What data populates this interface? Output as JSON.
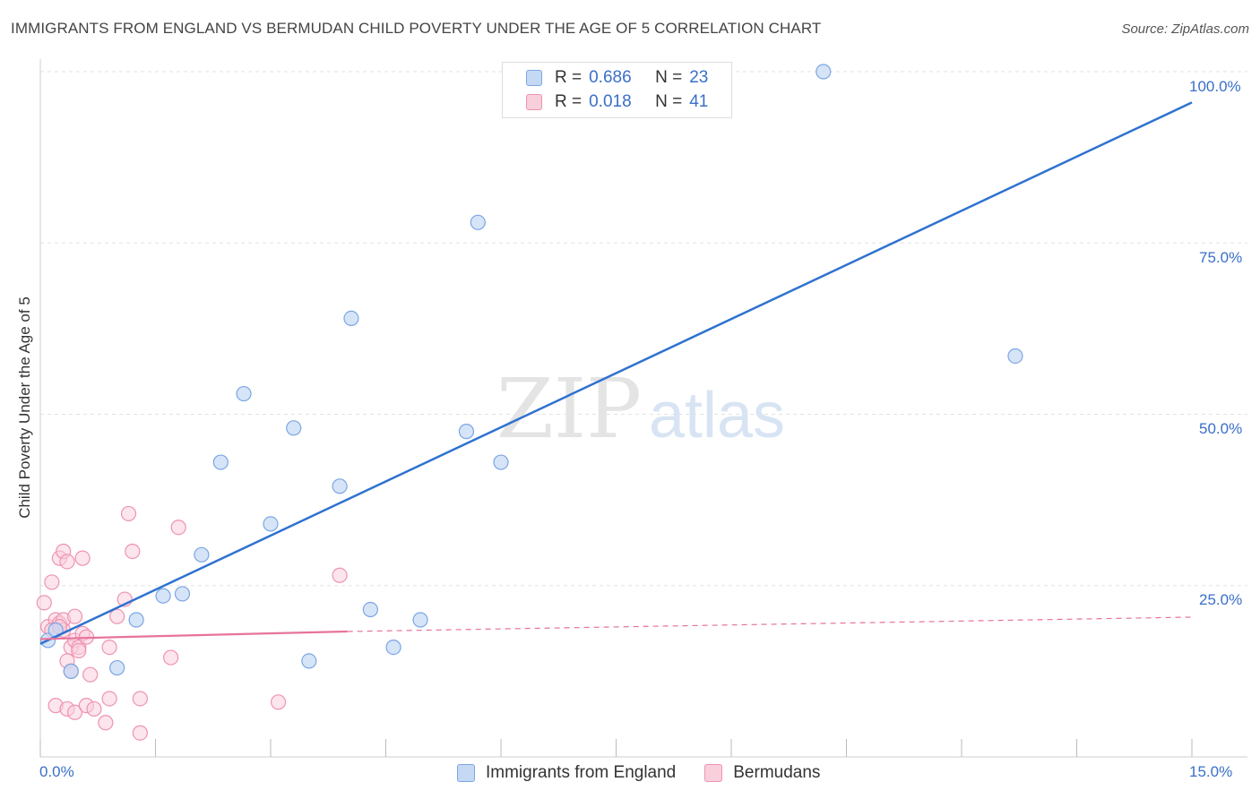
{
  "header": {
    "title": "IMMIGRANTS FROM ENGLAND VS BERMUDAN CHILD POVERTY UNDER THE AGE OF 5 CORRELATION CHART",
    "source": "Source: ZipAtlas.com"
  },
  "legend": {
    "rows": [
      {
        "r_label": "R =",
        "r_value": "0.686",
        "n_label": "N =",
        "n_value": "23"
      },
      {
        "r_label": "R =",
        "r_value": "0.018",
        "n_label": "N =",
        "n_value": "41"
      }
    ]
  },
  "bottom_legend": {
    "items": [
      "Immigrants from England",
      "Bermudans"
    ]
  },
  "axes": {
    "ylabel": "Child Poverty Under the Age of 5",
    "x_min_label": "0.0%",
    "x_max_label": "15.0%",
    "y_ticks": [
      "100.0%",
      "75.0%",
      "50.0%",
      "25.0%"
    ]
  },
  "watermark": {
    "zip": "ZIP",
    "atlas": "atlas"
  },
  "colors": {
    "blue": "#2f72d0",
    "blue_fill": "#c5d9f5",
    "blue_stroke": "#7aa6e3",
    "pink": "#e8739a",
    "pink_fill": "#f9cfdc",
    "pink_stroke": "#ee93b2",
    "tick_text": "#3a6fc9"
  },
  "chart_data": {
    "type": "scatter",
    "xlabel": "",
    "ylabel": "Child Poverty Under the Age of 5",
    "xlim": [
      0,
      15
    ],
    "ylim": [
      0,
      100
    ],
    "series": [
      {
        "name": "Immigrants from England",
        "points": [
          [
            0.1,
            17.0
          ],
          [
            0.4,
            12.5
          ],
          [
            1.0,
            13.0
          ],
          [
            1.25,
            20.0
          ],
          [
            1.6,
            23.5
          ],
          [
            1.85,
            23.8
          ],
          [
            2.1,
            29.5
          ],
          [
            2.35,
            43.0
          ],
          [
            2.65,
            53.0
          ],
          [
            3.0,
            34.0
          ],
          [
            3.3,
            48.0
          ],
          [
            3.5,
            14.0
          ],
          [
            3.9,
            39.5
          ],
          [
            4.05,
            64.0
          ],
          [
            4.3,
            21.5
          ],
          [
            4.6,
            16.0
          ],
          [
            4.95,
            20.0
          ],
          [
            5.55,
            47.5
          ],
          [
            5.7,
            78.0
          ],
          [
            6.0,
            43.0
          ],
          [
            10.2,
            100.0
          ],
          [
            12.7,
            58.5
          ],
          [
            0.2,
            18.5
          ]
        ],
        "trend": {
          "x": [
            0,
            15
          ],
          "y": [
            16.5,
            95.5
          ]
        }
      },
      {
        "name": "Bermudans",
        "points": [
          [
            0.05,
            22.5
          ],
          [
            0.1,
            19.0
          ],
          [
            0.15,
            25.5
          ],
          [
            0.2,
            20.0
          ],
          [
            0.25,
            19.5
          ],
          [
            0.25,
            29.0
          ],
          [
            0.3,
            30.0
          ],
          [
            0.3,
            20.0
          ],
          [
            0.3,
            18.5
          ],
          [
            0.35,
            28.5
          ],
          [
            0.35,
            14.0
          ],
          [
            0.4,
            16.0
          ],
          [
            0.4,
            12.5
          ],
          [
            0.45,
            17.0
          ],
          [
            0.5,
            16.0
          ],
          [
            0.55,
            29.0
          ],
          [
            0.55,
            18.0
          ],
          [
            0.6,
            17.5
          ],
          [
            0.65,
            12.0
          ],
          [
            0.2,
            7.5
          ],
          [
            0.35,
            7.0
          ],
          [
            0.45,
            6.5
          ],
          [
            0.6,
            7.5
          ],
          [
            0.7,
            7.0
          ],
          [
            0.85,
            5.0
          ],
          [
            0.9,
            16.0
          ],
          [
            0.9,
            8.5
          ],
          [
            1.0,
            20.5
          ],
          [
            1.1,
            23.0
          ],
          [
            1.15,
            35.5
          ],
          [
            1.2,
            30.0
          ],
          [
            1.3,
            8.5
          ],
          [
            1.3,
            3.5
          ],
          [
            1.7,
            14.5
          ],
          [
            1.8,
            33.5
          ],
          [
            3.1,
            8.0
          ],
          [
            3.9,
            26.5
          ],
          [
            0.5,
            15.5
          ],
          [
            0.15,
            18.5
          ],
          [
            0.25,
            19.0
          ],
          [
            0.45,
            20.5
          ]
        ],
        "trend": {
          "x": [
            0,
            4.0
          ],
          "y": [
            17.2,
            18.3
          ]
        },
        "trend_extension": {
          "x": [
            4.0,
            15
          ],
          "y": [
            18.3,
            20.4
          ]
        }
      }
    ]
  }
}
